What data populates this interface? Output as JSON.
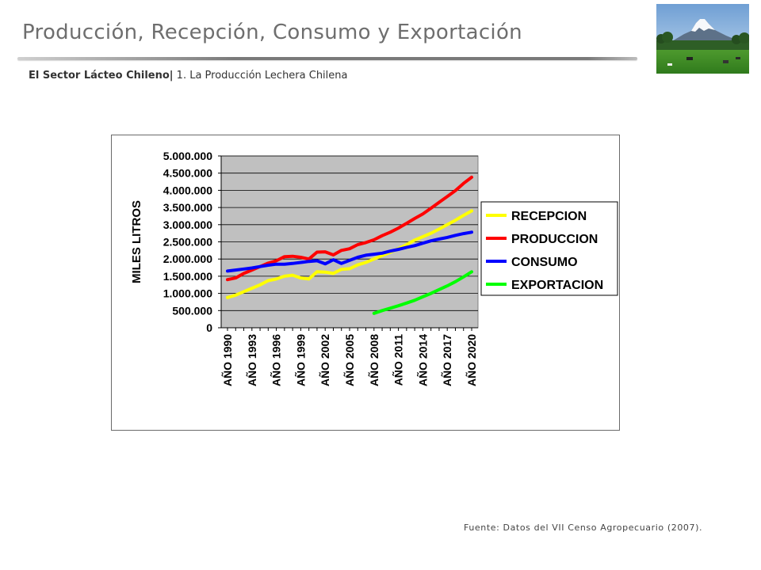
{
  "header": {
    "title": "Producción, Recepción, Consumo y Exportación",
    "subtitle_bold": "El Sector Lácteo Chileno|",
    "subtitle_rest": " 1. La Producción Lechera Chilena"
  },
  "photo": {
    "icon": "volcano-pasture-photo"
  },
  "chart_data": {
    "type": "line",
    "ylabel": "MILES LITROS",
    "ylim": [
      0,
      5000000
    ],
    "yticks": [
      "5.000.000",
      "4.500.000",
      "4.000.000",
      "3.500.000",
      "3.000.000",
      "2.500.000",
      "2.000.000",
      "1.500.000",
      "1.000.000",
      "500.000",
      "0"
    ],
    "ytick_values": [
      5000000,
      4500000,
      4000000,
      3500000,
      3000000,
      2500000,
      2000000,
      1500000,
      1000000,
      500000,
      0
    ],
    "x": [
      1990,
      1991,
      1992,
      1993,
      1994,
      1995,
      1996,
      1997,
      1998,
      1999,
      2000,
      2001,
      2002,
      2003,
      2004,
      2005,
      2006,
      2007,
      2008,
      2009,
      2010,
      2011,
      2012,
      2013,
      2014,
      2015,
      2016,
      2017,
      2018,
      2019,
      2020
    ],
    "xticks": [
      "AÑO 1990",
      "AÑO 1993",
      "AÑO 1996",
      "AÑO 1999",
      "AÑO 2002",
      "AÑO 2005",
      "AÑO 2008",
      "AÑO 2011",
      "AÑO 2014",
      "AÑO 2017",
      "AÑO 2020"
    ],
    "xtick_years": [
      1990,
      1993,
      1996,
      1999,
      2002,
      2005,
      2008,
      2011,
      2014,
      2017,
      2020
    ],
    "grid": true,
    "legend": "right",
    "plot_background": "#c0c0c0",
    "series": [
      {
        "name": "RECEPCION",
        "color": "#ffff00",
        "values": [
          880000,
          950000,
          1050000,
          1150000,
          1250000,
          1370000,
          1420000,
          1500000,
          1530000,
          1450000,
          1420000,
          1630000,
          1620000,
          1580000,
          1700000,
          1720000,
          1830000,
          1900000,
          2000000,
          2100000,
          2200000,
          2300000,
          2420000,
          2550000,
          2650000,
          2750000,
          2870000,
          3000000,
          3130000,
          3270000,
          3400000
        ]
      },
      {
        "name": "PRODUCCION",
        "color": "#ff0000",
        "values": [
          1400000,
          1450000,
          1580000,
          1680000,
          1780000,
          1880000,
          1950000,
          2070000,
          2080000,
          2050000,
          2000000,
          2200000,
          2210000,
          2120000,
          2250000,
          2300000,
          2420000,
          2480000,
          2560000,
          2680000,
          2780000,
          2900000,
          3040000,
          3180000,
          3310000,
          3480000,
          3650000,
          3820000,
          3990000,
          4200000,
          4380000
        ]
      },
      {
        "name": "CONSUMO",
        "color": "#0000ff",
        "values": [
          1650000,
          1680000,
          1710000,
          1740000,
          1780000,
          1820000,
          1850000,
          1850000,
          1870000,
          1900000,
          1930000,
          1950000,
          1860000,
          1980000,
          1870000,
          1960000,
          2050000,
          2110000,
          2140000,
          2170000,
          2230000,
          2280000,
          2340000,
          2390000,
          2460000,
          2530000,
          2580000,
          2630000,
          2690000,
          2740000,
          2780000
        ]
      },
      {
        "name": "EXPORTACION",
        "color": "#00ff00",
        "x": [
          2008,
          2009,
          2010,
          2011,
          2012,
          2013,
          2014,
          2015,
          2016,
          2017,
          2018,
          2019,
          2020
        ],
        "values": [
          420000,
          500000,
          570000,
          640000,
          720000,
          800000,
          900000,
          1000000,
          1110000,
          1220000,
          1340000,
          1480000,
          1630000
        ]
      }
    ]
  },
  "footer": {
    "source": "Fuente: Datos del VII Censo Agropecuario (2007)."
  }
}
